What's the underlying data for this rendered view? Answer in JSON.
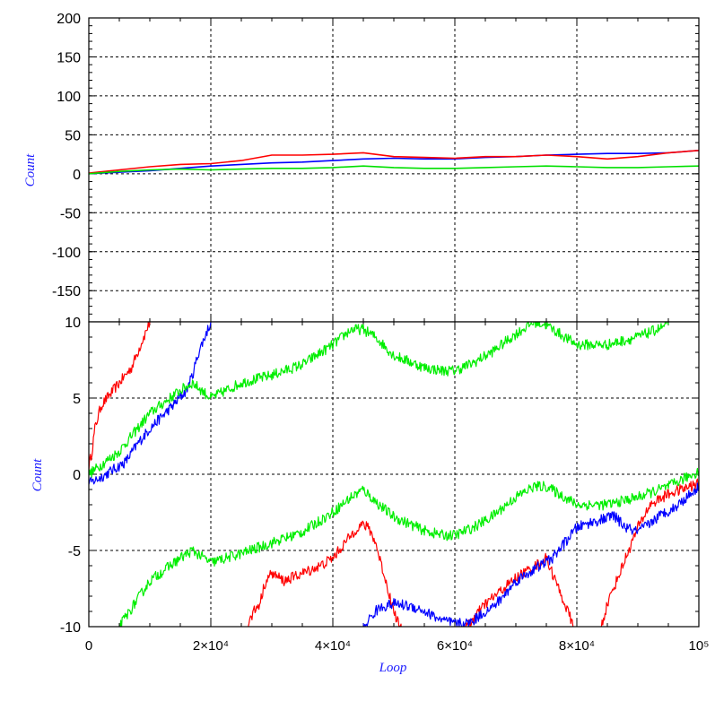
{
  "chart_data": [
    {
      "type": "line",
      "title": "",
      "ylabel": "Count",
      "xlabel": "",
      "xlim": [
        0,
        100000
      ],
      "ylim": [
        -190,
        200
      ],
      "grid": true,
      "yticks": [
        200,
        150,
        100,
        50,
        0,
        -50,
        -100,
        -150
      ],
      "ytick_labels": [
        "200",
        "150",
        "100",
        "50",
        "0",
        "-50",
        "-100",
        "-150"
      ],
      "series": [
        {
          "color": "#0000ff",
          "x": [
            0,
            5000,
            10000,
            15000,
            20000,
            25000,
            30000,
            35000,
            40000,
            45000,
            50000,
            55000,
            60000,
            65000,
            70000,
            75000,
            80000,
            85000,
            90000,
            95000,
            100000
          ],
          "y": [
            0,
            2,
            4,
            7,
            10,
            12,
            14,
            15,
            17,
            19,
            20,
            19,
            19,
            21,
            22,
            24,
            25,
            26,
            26,
            27,
            30
          ]
        },
        {
          "color": "#ff0000",
          "x": [
            0,
            5000,
            10000,
            15000,
            20000,
            25000,
            30000,
            35000,
            40000,
            45000,
            50000,
            55000,
            60000,
            65000,
            70000,
            75000,
            80000,
            85000,
            90000,
            95000,
            100000
          ],
          "y": [
            1,
            5,
            9,
            12,
            13,
            17,
            24,
            24,
            25,
            27,
            22,
            21,
            20,
            22,
            22,
            24,
            22,
            19,
            22,
            27,
            30
          ]
        },
        {
          "color": "#00e000",
          "x": [
            0,
            5000,
            10000,
            15000,
            20000,
            25000,
            30000,
            35000,
            40000,
            45000,
            50000,
            55000,
            60000,
            65000,
            70000,
            75000,
            80000,
            85000,
            90000,
            95000,
            100000
          ],
          "y": [
            0,
            3,
            5,
            6,
            5,
            6,
            7,
            7,
            8,
            10,
            8,
            7,
            7,
            8,
            9,
            10,
            9,
            8,
            8,
            9,
            10
          ]
        }
      ]
    },
    {
      "type": "line",
      "title": "",
      "ylabel": "Count",
      "xlabel": "Loop",
      "xlim": [
        0,
        100000
      ],
      "ylim": [
        -10,
        10
      ],
      "grid": true,
      "yticks": [
        10,
        5,
        0,
        -5,
        -10
      ],
      "ytick_labels": [
        "10",
        "5",
        "0",
        "-5",
        "-10"
      ],
      "xticks": [
        0,
        20000,
        40000,
        60000,
        80000,
        100000
      ],
      "xtick_labels": [
        "0",
        "2×10⁴",
        "4×10⁴",
        "6×10⁴",
        "8×10⁴",
        "10⁵"
      ],
      "series": [
        {
          "color": "#ff0000",
          "x": [
            0,
            500,
            1000,
            2000,
            3000,
            4000,
            5000,
            6000,
            7000,
            8000,
            9000,
            10000
          ],
          "y": [
            0.5,
            1.5,
            3,
            4.5,
            5,
            5.5,
            6,
            6.5,
            7,
            8,
            9,
            10
          ]
        },
        {
          "color": "#0000ff",
          "x": [
            0,
            2000,
            4000,
            6000,
            8000,
            10000,
            12000,
            14000,
            16000,
            17000,
            18000,
            19000,
            20000
          ],
          "y": [
            -0.6,
            -0.2,
            0.3,
            0.8,
            2,
            3,
            3.8,
            4.6,
            5.5,
            6.5,
            8,
            9,
            10
          ]
        },
        {
          "color": "#00ee00",
          "x": [
            0,
            5000,
            10000,
            15000,
            17000,
            20000,
            25000,
            30000,
            35000,
            40000,
            43000,
            45000,
            47000,
            50000,
            55000,
            58000,
            60000,
            63000,
            66000,
            70000,
            73000,
            75000,
            78000,
            80000,
            85000,
            90000,
            95000
          ],
          "y": [
            0,
            1.5,
            4,
            5.5,
            6,
            5,
            6,
            6.5,
            7.2,
            8.5,
            9.5,
            9.5,
            9,
            7.8,
            7,
            6.8,
            6.8,
            7.3,
            8,
            9.2,
            10,
            9.8,
            9,
            8.5,
            8.5,
            9,
            9.8
          ]
        },
        {
          "color": "#00ee00",
          "x": [
            5000,
            10000,
            15000,
            17000,
            20000,
            25000,
            30000,
            35000,
            40000,
            43000,
            45000,
            47000,
            50000,
            55000,
            58000,
            60000,
            63000,
            66000,
            70000,
            73000,
            75000,
            78000,
            80000,
            85000,
            90000,
            95000,
            100000
          ],
          "y": [
            -10,
            -7,
            -5.5,
            -5,
            -5.8,
            -5.2,
            -4.5,
            -3.8,
            -2.5,
            -1.5,
            -1,
            -1.8,
            -2.8,
            -3.7,
            -4,
            -4,
            -3.5,
            -2.8,
            -1.5,
            -0.8,
            -0.8,
            -1.5,
            -2,
            -2,
            -1.5,
            -0.8,
            0.2
          ]
        },
        {
          "color": "#ff0000",
          "x": [
            26000,
            27000,
            28000,
            29000,
            30000,
            32000,
            35000,
            38000,
            40000,
            42000,
            43000,
            44000,
            45000,
            46000,
            47000,
            48000,
            49000,
            50000,
            52000,
            55000,
            58000,
            60000,
            62000,
            65000,
            68000,
            70000,
            72000,
            74000,
            75000,
            76000,
            77000,
            78000,
            79000,
            80000,
            82000,
            83000,
            84000,
            85000,
            86000,
            88000,
            90000,
            92000,
            95000,
            100000
          ],
          "y": [
            -10,
            -9,
            -8.5,
            -7,
            -6.5,
            -7,
            -6.5,
            -6,
            -5.5,
            -4.5,
            -4,
            -3.5,
            -3.3,
            -3.6,
            -4.5,
            -6,
            -7.5,
            -9,
            -11,
            -11,
            -11,
            -11,
            -10,
            -8.5,
            -7.5,
            -6.8,
            -6.3,
            -5.8,
            -5.5,
            -6.5,
            -7.5,
            -8.5,
            -9.5,
            -11,
            -11,
            -11,
            -10,
            -8.5,
            -7.5,
            -5.5,
            -3.5,
            -2,
            -1.3,
            -0.6
          ]
        },
        {
          "color": "#0000ff",
          "x": [
            45000,
            46000,
            47000,
            48000,
            50000,
            52000,
            54000,
            56000,
            58000,
            59000,
            60000,
            62000,
            63000,
            64000,
            65000,
            66000,
            68000,
            70000,
            72000,
            74000,
            76000,
            78000,
            80000,
            82000,
            84000,
            86000,
            88000,
            90000,
            92000,
            94000,
            96000,
            98000,
            100000
          ],
          "y": [
            -10,
            -9.5,
            -9,
            -8.7,
            -8.5,
            -8.6,
            -8.8,
            -9.2,
            -9.6,
            -9.7,
            -9.8,
            -9.8,
            -9.6,
            -9.3,
            -9,
            -8.8,
            -8,
            -7,
            -6.5,
            -6,
            -5.5,
            -4.5,
            -3.5,
            -3.2,
            -3,
            -2.7,
            -3.5,
            -3.8,
            -3.2,
            -2.6,
            -2.2,
            -1.5,
            -0.8
          ]
        }
      ]
    }
  ]
}
